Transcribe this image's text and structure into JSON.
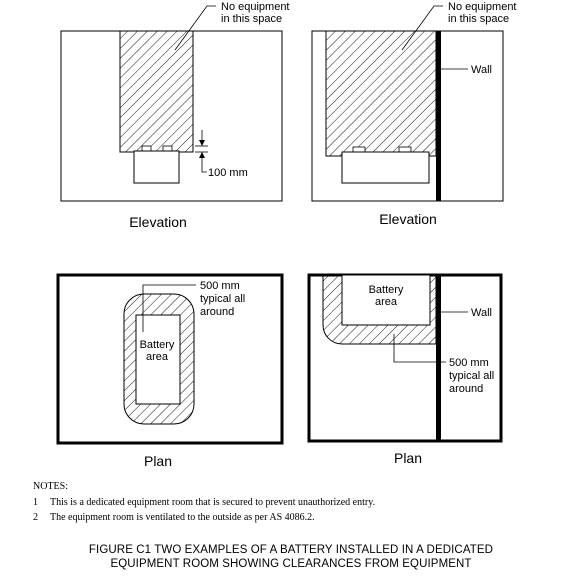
{
  "elevation_left": {
    "no_equipment_line1": "No equipment",
    "no_equipment_line2": "in this space",
    "dimension": "100 mm",
    "caption": "Elevation"
  },
  "elevation_right": {
    "no_equipment_line1": "No equipment",
    "no_equipment_line2": "in this space",
    "wall": "Wall",
    "caption": "Elevation"
  },
  "plan_left": {
    "clearance_line1": "500 mm",
    "clearance_line2": "typical all",
    "clearance_line3": "around",
    "battery_line1": "Battery",
    "battery_line2": "area",
    "caption": "Plan"
  },
  "plan_right": {
    "battery_line1": "Battery",
    "battery_line2": "area",
    "wall": "Wall",
    "clearance_line1": "500 mm",
    "clearance_line2": "typical all",
    "clearance_line3": "around",
    "caption": "Plan"
  },
  "notes": {
    "heading": "NOTES:",
    "items": [
      {
        "number": "1",
        "text": "This is a dedicated equipment room that is secured to prevent unauthorized entry."
      },
      {
        "number": "2",
        "text": "The equipment room is ventilated to the outside as per AS 4086.2."
      }
    ]
  },
  "figure_title": {
    "line1": "FIGURE  C1  TWO EXAMPLES OF A BATTERY INSTALLED IN A DEDICATED",
    "line2": "EQUIPMENT ROOM SHOWING CLEARANCES FROM EQUIPMENT"
  }
}
